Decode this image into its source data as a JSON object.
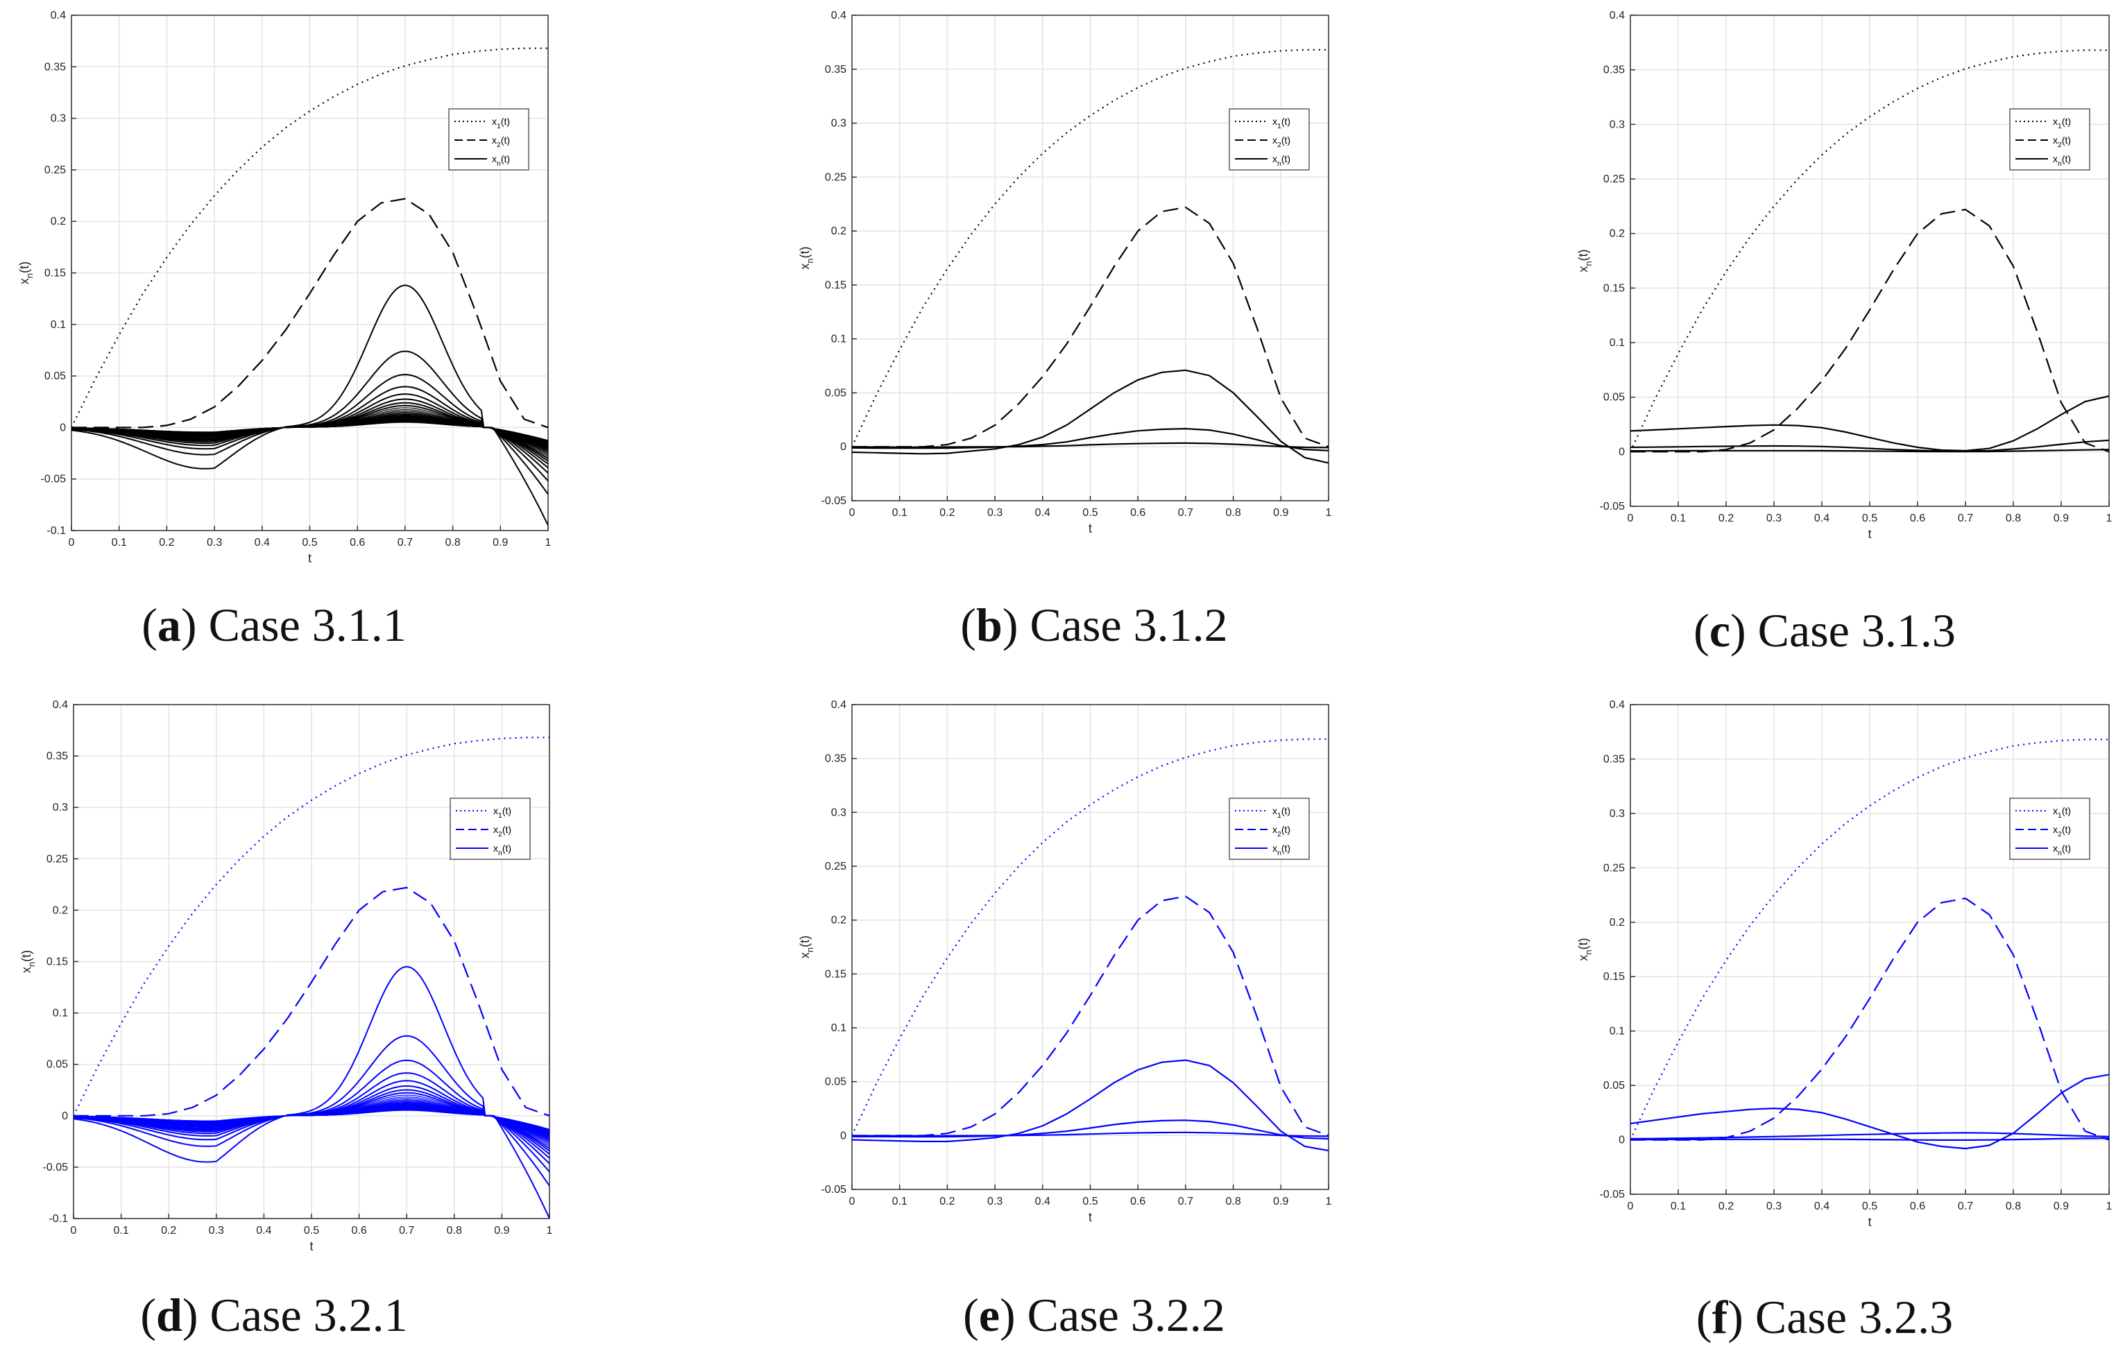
{
  "figure": {
    "captions": [
      {
        "letter": "a",
        "rest": " Case 3.1.1"
      },
      {
        "letter": "b",
        "rest": " Case 3.1.2"
      },
      {
        "letter": "c",
        "rest": " Case 3.1.3"
      },
      {
        "letter": "d",
        "rest": " Case 3.2.1"
      },
      {
        "letter": "e",
        "rest": " Case 3.2.2"
      },
      {
        "letter": "f",
        "rest": " Case 3.2.3"
      }
    ]
  },
  "chart_data": [
    {
      "id": "a",
      "type": "line",
      "title": "",
      "color": "#000000",
      "xlabel": "t",
      "ylabel": "x_n(t)",
      "xlim": [
        0,
        1
      ],
      "ylim": [
        -0.1,
        0.4
      ],
      "x_ticks": [
        0,
        0.1,
        0.2,
        0.3,
        0.4,
        0.5,
        0.6,
        0.7,
        0.8,
        0.9,
        1
      ],
      "y_ticks": [
        -0.1,
        -0.05,
        0,
        0.05,
        0.1,
        0.15,
        0.2,
        0.25,
        0.3,
        0.35,
        0.4
      ],
      "grid": true,
      "legend": [
        "x1(t)",
        "x2(t)",
        "xn(t)"
      ],
      "legend_position": "top-right",
      "x": [
        0,
        0.05,
        0.1,
        0.15,
        0.2,
        0.25,
        0.3,
        0.35,
        0.4,
        0.45,
        0.5,
        0.55,
        0.6,
        0.65,
        0.7,
        0.75,
        0.8,
        0.85,
        0.9,
        0.95,
        1
      ],
      "series": [
        {
          "name": "x1(t)",
          "style": "dotted",
          "values": [
            0,
            0.047,
            0.09,
            0.13,
            0.165,
            0.197,
            0.225,
            0.25,
            0.272,
            0.291,
            0.307,
            0.321,
            0.333,
            0.343,
            0.351,
            0.357,
            0.362,
            0.365,
            0.367,
            0.368,
            0.368
          ]
        },
        {
          "name": "x2(t)",
          "style": "dashed",
          "values": [
            0,
            0,
            0,
            0,
            0.002,
            0.008,
            0.02,
            0.04,
            0.065,
            0.095,
            0.13,
            0.167,
            0.2,
            0.218,
            0.222,
            0.207,
            0.17,
            0.11,
            0.045,
            0.008,
            0
          ]
        },
        {
          "name": "xn(t)",
          "style": "solid",
          "count": 40,
          "peak_t": 0.7,
          "peak_max": 0.138,
          "right_edge_min": -0.095,
          "low_dip": -0.04
        }
      ]
    },
    {
      "id": "b",
      "type": "line",
      "title": "",
      "color": "#000000",
      "xlabel": "t",
      "ylabel": "x_n(t)",
      "xlim": [
        0,
        1
      ],
      "ylim": [
        -0.05,
        0.4
      ],
      "x_ticks": [
        0,
        0.1,
        0.2,
        0.3,
        0.4,
        0.5,
        0.6,
        0.7,
        0.8,
        0.9,
        1
      ],
      "y_ticks": [
        -0.05,
        0,
        0.05,
        0.1,
        0.15,
        0.2,
        0.25,
        0.3,
        0.35,
        0.4
      ],
      "grid": true,
      "legend": [
        "x1(t)",
        "x2(t)",
        "xn(t)"
      ],
      "legend_position": "top-right",
      "x": [
        0,
        0.05,
        0.1,
        0.15,
        0.2,
        0.25,
        0.3,
        0.35,
        0.4,
        0.45,
        0.5,
        0.55,
        0.6,
        0.65,
        0.7,
        0.75,
        0.8,
        0.85,
        0.9,
        0.95,
        1
      ],
      "series": [
        {
          "name": "x1(t)",
          "style": "dotted",
          "values": [
            0,
            0.047,
            0.09,
            0.13,
            0.165,
            0.197,
            0.225,
            0.25,
            0.272,
            0.291,
            0.307,
            0.321,
            0.333,
            0.343,
            0.351,
            0.357,
            0.362,
            0.365,
            0.367,
            0.368,
            0.368
          ]
        },
        {
          "name": "x2(t)",
          "style": "dashed",
          "values": [
            0,
            0,
            0,
            0,
            0.002,
            0.008,
            0.02,
            0.04,
            0.065,
            0.095,
            0.13,
            0.167,
            0.2,
            0.218,
            0.222,
            0.207,
            0.17,
            0.11,
            0.045,
            0.008,
            0
          ]
        },
        {
          "name": "xn(t) #1",
          "style": "solid",
          "values": [
            -0.005,
            -0.0055,
            -0.006,
            -0.0065,
            -0.006,
            -0.004,
            -0.002,
            0.002,
            0.009,
            0.02,
            0.035,
            0.05,
            0.062,
            0.069,
            0.071,
            0.066,
            0.05,
            0.028,
            0.005,
            -0.01,
            -0.015
          ]
        },
        {
          "name": "xn(t) #2",
          "style": "solid",
          "values": [
            -0.001,
            -0.0012,
            -0.0013,
            -0.0013,
            -0.0012,
            -0.0008,
            -0.0003,
            0.0005,
            0.002,
            0.0045,
            0.0085,
            0.012,
            0.0148,
            0.0162,
            0.0168,
            0.0155,
            0.0118,
            0.0065,
            0.001,
            -0.0025,
            -0.0035
          ]
        },
        {
          "name": "xn(t) #3",
          "style": "solid",
          "values": [
            -0.0002,
            -0.0002,
            -0.0003,
            -0.0003,
            -0.0002,
            -0.0001,
            0,
            0.0001,
            0.0005,
            0.001,
            0.0018,
            0.0025,
            0.003,
            0.0033,
            0.0034,
            0.0031,
            0.0024,
            0.0013,
            0.0002,
            -0.0005,
            -0.0007
          ]
        }
      ]
    },
    {
      "id": "c",
      "type": "line",
      "title": "",
      "color": "#000000",
      "xlabel": "t",
      "ylabel": "x_n(t)",
      "xlim": [
        0,
        1
      ],
      "ylim": [
        -0.05,
        0.4
      ],
      "x_ticks": [
        0,
        0.1,
        0.2,
        0.3,
        0.4,
        0.5,
        0.6,
        0.7,
        0.8,
        0.9,
        1
      ],
      "y_ticks": [
        -0.05,
        0,
        0.05,
        0.1,
        0.15,
        0.2,
        0.25,
        0.3,
        0.35,
        0.4
      ],
      "grid": true,
      "legend": [
        "x1(t)",
        "x2(t)",
        "xn(t)"
      ],
      "legend_position": "top-right",
      "x": [
        0,
        0.05,
        0.1,
        0.15,
        0.2,
        0.25,
        0.3,
        0.35,
        0.4,
        0.45,
        0.5,
        0.55,
        0.6,
        0.65,
        0.7,
        0.75,
        0.8,
        0.85,
        0.9,
        0.95,
        1
      ],
      "series": [
        {
          "name": "x1(t)",
          "style": "dotted",
          "values": [
            0,
            0.047,
            0.09,
            0.13,
            0.165,
            0.197,
            0.225,
            0.25,
            0.272,
            0.291,
            0.307,
            0.321,
            0.333,
            0.343,
            0.351,
            0.357,
            0.362,
            0.365,
            0.367,
            0.368,
            0.368
          ]
        },
        {
          "name": "x2(t)",
          "style": "dashed",
          "values": [
            0,
            0,
            0,
            0,
            0.002,
            0.008,
            0.02,
            0.04,
            0.065,
            0.095,
            0.13,
            0.167,
            0.2,
            0.218,
            0.222,
            0.207,
            0.17,
            0.11,
            0.045,
            0.008,
            0
          ]
        },
        {
          "name": "xn(t) #1",
          "style": "solid",
          "values": [
            0.019,
            0.02,
            0.021,
            0.022,
            0.023,
            0.024,
            0.0245,
            0.024,
            0.022,
            0.018,
            0.013,
            0.008,
            0.004,
            0.0015,
            0.001,
            0.003,
            0.01,
            0.021,
            0.034,
            0.046,
            0.051
          ]
        },
        {
          "name": "xn(t) #2",
          "style": "solid",
          "values": [
            0.004,
            0.0042,
            0.0045,
            0.0048,
            0.005,
            0.0052,
            0.0053,
            0.0052,
            0.0048,
            0.004,
            0.003,
            0.002,
            0.0012,
            0.0006,
            0.0005,
            0.001,
            0.0025,
            0.0045,
            0.0068,
            0.009,
            0.0105
          ]
        },
        {
          "name": "xn(t) #3",
          "style": "solid",
          "values": [
            0.0008,
            0.0008,
            0.0009,
            0.0009,
            0.001,
            0.001,
            0.001,
            0.001,
            0.0009,
            0.0008,
            0.0006,
            0.0004,
            0.0002,
            0.0001,
            0.0001,
            0.0002,
            0.0005,
            0.0009,
            0.0013,
            0.0017,
            0.002
          ]
        }
      ]
    },
    {
      "id": "d",
      "type": "line",
      "title": "",
      "color": "#0000ff",
      "xlabel": "t",
      "ylabel": "x_n(t)",
      "xlim": [
        0,
        1
      ],
      "ylim": [
        -0.1,
        0.4
      ],
      "x_ticks": [
        0,
        0.1,
        0.2,
        0.3,
        0.4,
        0.5,
        0.6,
        0.7,
        0.8,
        0.9,
        1
      ],
      "y_ticks": [
        -0.1,
        -0.05,
        0,
        0.05,
        0.1,
        0.15,
        0.2,
        0.25,
        0.3,
        0.35,
        0.4
      ],
      "grid": true,
      "legend": [
        "x1(t)",
        "x2(t)",
        "xn(t)"
      ],
      "legend_position": "top-right",
      "x": [
        0,
        0.05,
        0.1,
        0.15,
        0.2,
        0.25,
        0.3,
        0.35,
        0.4,
        0.45,
        0.5,
        0.55,
        0.6,
        0.65,
        0.7,
        0.75,
        0.8,
        0.85,
        0.9,
        0.95,
        1
      ],
      "series": [
        {
          "name": "x1(t)",
          "style": "dotted",
          "values": [
            0,
            0.047,
            0.09,
            0.13,
            0.165,
            0.197,
            0.225,
            0.25,
            0.272,
            0.291,
            0.307,
            0.321,
            0.333,
            0.343,
            0.351,
            0.357,
            0.362,
            0.365,
            0.367,
            0.368,
            0.368
          ]
        },
        {
          "name": "x2(t)",
          "style": "dashed",
          "values": [
            0,
            0,
            0,
            0,
            0.002,
            0.008,
            0.02,
            0.04,
            0.065,
            0.095,
            0.13,
            0.167,
            0.2,
            0.218,
            0.222,
            0.207,
            0.17,
            0.11,
            0.045,
            0.008,
            0
          ]
        },
        {
          "name": "xn(t)",
          "style": "solid",
          "count": 40,
          "peak_t": 0.7,
          "peak_max": 0.145,
          "right_edge_min": -0.1,
          "low_dip": -0.045
        }
      ]
    },
    {
      "id": "e",
      "type": "line",
      "title": "",
      "color": "#0000ff",
      "xlabel": "t",
      "ylabel": "x_n(t)",
      "xlim": [
        0,
        1
      ],
      "ylim": [
        -0.05,
        0.4
      ],
      "x_ticks": [
        0,
        0.1,
        0.2,
        0.3,
        0.4,
        0.5,
        0.6,
        0.7,
        0.8,
        0.9,
        1
      ],
      "y_ticks": [
        -0.05,
        0,
        0.05,
        0.1,
        0.15,
        0.2,
        0.25,
        0.3,
        0.35,
        0.4
      ],
      "grid": true,
      "legend": [
        "x1(t)",
        "x2(t)",
        "xn(t)"
      ],
      "legend_position": "top-right",
      "x": [
        0,
        0.05,
        0.1,
        0.15,
        0.2,
        0.25,
        0.3,
        0.35,
        0.4,
        0.45,
        0.5,
        0.55,
        0.6,
        0.65,
        0.7,
        0.75,
        0.8,
        0.85,
        0.9,
        0.95,
        1
      ],
      "series": [
        {
          "name": "x1(t)",
          "style": "dotted",
          "values": [
            0,
            0.047,
            0.09,
            0.13,
            0.165,
            0.197,
            0.225,
            0.25,
            0.272,
            0.291,
            0.307,
            0.321,
            0.333,
            0.343,
            0.351,
            0.357,
            0.362,
            0.365,
            0.367,
            0.368,
            0.368
          ]
        },
        {
          "name": "x2(t)",
          "style": "dashed",
          "values": [
            0,
            0,
            0,
            0,
            0.002,
            0.008,
            0.02,
            0.04,
            0.065,
            0.095,
            0.13,
            0.167,
            0.2,
            0.218,
            0.222,
            0.207,
            0.17,
            0.11,
            0.045,
            0.008,
            0
          ]
        },
        {
          "name": "xn(t) #1",
          "style": "solid",
          "values": [
            -0.004,
            -0.0045,
            -0.005,
            -0.0055,
            -0.0055,
            -0.004,
            -0.002,
            0.002,
            0.009,
            0.02,
            0.034,
            0.049,
            0.061,
            0.068,
            0.07,
            0.065,
            0.049,
            0.027,
            0.004,
            -0.01,
            -0.014
          ]
        },
        {
          "name": "xn(t) #2",
          "style": "solid",
          "values": [
            -0.001,
            -0.001,
            -0.0011,
            -0.0012,
            -0.0011,
            -0.0008,
            -0.0003,
            0.0005,
            0.002,
            0.004,
            0.007,
            0.0102,
            0.0125,
            0.0138,
            0.0142,
            0.013,
            0.0098,
            0.0052,
            0.0006,
            -0.0022,
            -0.003
          ]
        },
        {
          "name": "xn(t) #3",
          "style": "solid",
          "values": [
            -0.0002,
            -0.0002,
            -0.0002,
            -0.0002,
            -0.0002,
            -0.0001,
            0,
            0.0001,
            0.0004,
            0.0008,
            0.0014,
            0.002,
            0.0025,
            0.0028,
            0.0029,
            0.0026,
            0.002,
            0.0011,
            0.0001,
            -0.0004,
            -0.0006
          ]
        }
      ]
    },
    {
      "id": "f",
      "type": "line",
      "title": "",
      "color": "#0000ff",
      "xlabel": "t",
      "ylabel": "x_n(t)",
      "xlim": [
        0,
        1
      ],
      "ylim": [
        -0.05,
        0.4
      ],
      "x_ticks": [
        0,
        0.1,
        0.2,
        0.3,
        0.4,
        0.5,
        0.6,
        0.7,
        0.8,
        0.9,
        1
      ],
      "y_ticks": [
        -0.05,
        0,
        0.05,
        0.1,
        0.15,
        0.2,
        0.25,
        0.3,
        0.35,
        0.4
      ],
      "grid": true,
      "legend": [
        "x1(t)",
        "x2(t)",
        "xn(t)"
      ],
      "legend_position": "top-right",
      "x": [
        0,
        0.05,
        0.1,
        0.15,
        0.2,
        0.25,
        0.3,
        0.35,
        0.4,
        0.45,
        0.5,
        0.55,
        0.6,
        0.65,
        0.7,
        0.75,
        0.8,
        0.85,
        0.9,
        0.95,
        1
      ],
      "series": [
        {
          "name": "x1(t)",
          "style": "dotted",
          "values": [
            0,
            0.047,
            0.09,
            0.13,
            0.165,
            0.197,
            0.225,
            0.25,
            0.272,
            0.291,
            0.307,
            0.321,
            0.333,
            0.343,
            0.351,
            0.357,
            0.362,
            0.365,
            0.367,
            0.368,
            0.368
          ]
        },
        {
          "name": "x2(t)",
          "style": "dashed",
          "values": [
            0,
            0,
            0,
            0,
            0.002,
            0.008,
            0.02,
            0.04,
            0.065,
            0.095,
            0.13,
            0.167,
            0.2,
            0.218,
            0.222,
            0.207,
            0.17,
            0.11,
            0.045,
            0.008,
            0
          ]
        },
        {
          "name": "xn(t) #1",
          "style": "solid",
          "values": [
            0.015,
            0.018,
            0.021,
            0.024,
            0.026,
            0.028,
            0.029,
            0.028,
            0.025,
            0.019,
            0.012,
            0.005,
            -0.002,
            -0.006,
            -0.008,
            -0.005,
            0.006,
            0.024,
            0.043,
            0.056,
            0.06
          ]
        },
        {
          "name": "xn(t) #2",
          "style": "solid",
          "values": [
            0.001,
            0.0012,
            0.0015,
            0.0018,
            0.0022,
            0.0026,
            0.003,
            0.0035,
            0.004,
            0.0046,
            0.005,
            0.0055,
            0.006,
            0.0063,
            0.0065,
            0.0063,
            0.0058,
            0.005,
            0.0042,
            0.0035,
            0.003
          ]
        },
        {
          "name": "xn(t) #3",
          "style": "solid",
          "values": [
            0.0003,
            0.0003,
            0.0004,
            0.0004,
            0.0005,
            0.0005,
            0.0006,
            0.0006,
            0.0006,
            0.0005,
            0.0003,
            0.0001,
            -0.0001,
            -0.0002,
            -0.0002,
            0,
            0.0003,
            0.0007,
            0.0011,
            0.0014,
            0.0015
          ]
        }
      ]
    }
  ]
}
